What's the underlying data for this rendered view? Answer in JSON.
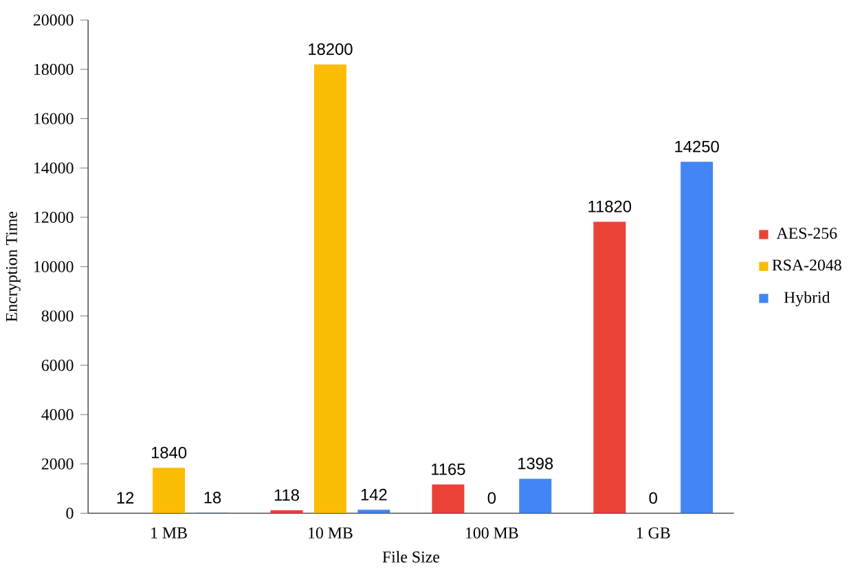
{
  "chart_data": {
    "type": "bar",
    "xlabel": "File Size",
    "ylabel": "Encryption Time",
    "categories": [
      "1 MB",
      "10 MB",
      "100 MB",
      "1 GB"
    ],
    "series": [
      {
        "name": "AES-256",
        "color": "#ea4335",
        "values": [
          12,
          118,
          1165,
          11820
        ]
      },
      {
        "name": "RSA-2048",
        "color": "#fbbc04",
        "values": [
          1840,
          18200,
          0,
          0
        ]
      },
      {
        "name": "Hybrid",
        "color": "#4285f4",
        "values": [
          18,
          142,
          1398,
          14250
        ]
      }
    ],
    "ylim": [
      0,
      20000
    ],
    "yticks": [
      0,
      2000,
      4000,
      6000,
      8000,
      10000,
      12000,
      14000,
      16000,
      18000,
      20000
    ],
    "data_labels": true,
    "legend": "right",
    "grid": false
  }
}
